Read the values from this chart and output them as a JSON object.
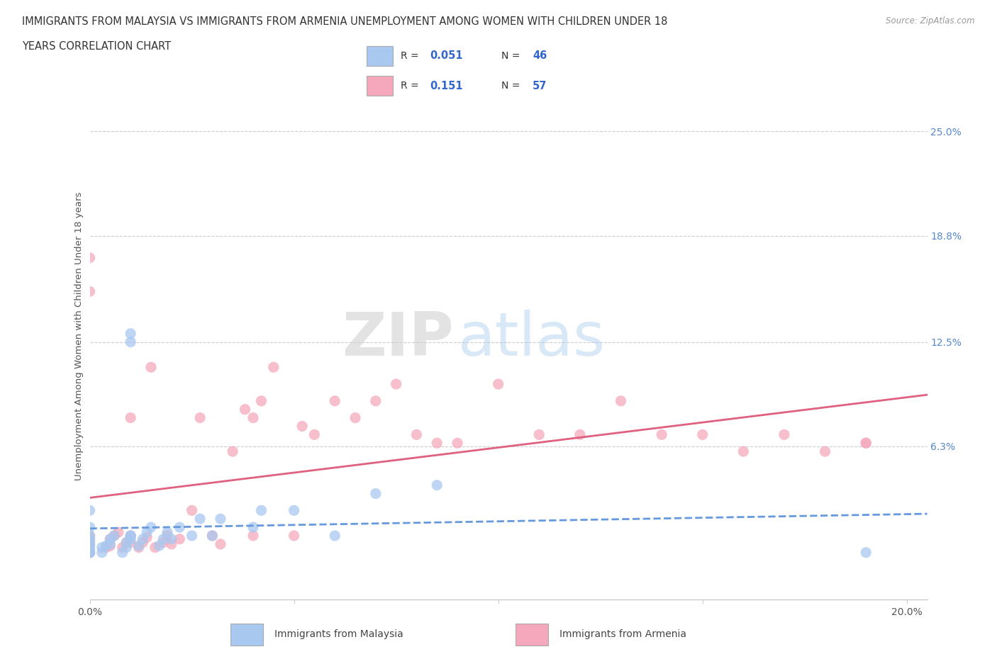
{
  "title_line1": "IMMIGRANTS FROM MALAYSIA VS IMMIGRANTS FROM ARMENIA UNEMPLOYMENT AMONG WOMEN WITH CHILDREN UNDER 18",
  "title_line2": "YEARS CORRELATION CHART",
  "source": "Source: ZipAtlas.com",
  "ylabel": "Unemployment Among Women with Children Under 18 years",
  "xlim": [
    0.0,
    0.205
  ],
  "ylim": [
    -0.028,
    0.285
  ],
  "ytick_right_labels": [
    "25.0%",
    "18.8%",
    "12.5%",
    "6.3%"
  ],
  "ytick_right_values": [
    0.25,
    0.188,
    0.125,
    0.063
  ],
  "R_malaysia": 0.051,
  "N_malaysia": 46,
  "R_armenia": 0.151,
  "N_armenia": 57,
  "color_malaysia": "#a8c8f0",
  "color_armenia": "#f5a8bc",
  "trendline_malaysia_color": "#6699dd",
  "trendline_armenia_color": "#e06080",
  "watermark_zip": "ZIP",
  "watermark_atlas": "atlas",
  "legend_label_malaysia": "Immigrants from Malaysia",
  "legend_label_armenia": "Immigrants from Armenia",
  "malaysia_x": [
    0.0,
    0.0,
    0.0,
    0.0,
    0.0,
    0.0,
    0.0,
    0.0,
    0.0,
    0.0,
    0.0,
    0.0,
    0.003,
    0.003,
    0.004,
    0.005,
    0.005,
    0.006,
    0.008,
    0.009,
    0.009,
    0.01,
    0.01,
    0.01,
    0.01,
    0.01,
    0.012,
    0.013,
    0.014,
    0.015,
    0.017,
    0.018,
    0.019,
    0.02,
    0.022,
    0.025,
    0.027,
    0.03,
    0.032,
    0.04,
    0.042,
    0.05,
    0.06,
    0.07,
    0.085,
    0.19
  ],
  "malaysia_y": [
    0.0,
    0.0,
    0.0,
    0.0,
    0.002,
    0.004,
    0.005,
    0.007,
    0.008,
    0.01,
    0.015,
    0.025,
    0.0,
    0.003,
    0.004,
    0.005,
    0.008,
    0.01,
    0.0,
    0.003,
    0.006,
    0.008,
    0.01,
    0.01,
    0.13,
    0.125,
    0.004,
    0.008,
    0.012,
    0.015,
    0.004,
    0.008,
    0.012,
    0.008,
    0.015,
    0.01,
    0.02,
    0.01,
    0.02,
    0.015,
    0.025,
    0.025,
    0.01,
    0.035,
    0.04,
    0.0
  ],
  "armenia_x": [
    0.0,
    0.0,
    0.0,
    0.0,
    0.0,
    0.0,
    0.0,
    0.004,
    0.005,
    0.005,
    0.006,
    0.007,
    0.008,
    0.009,
    0.01,
    0.01,
    0.01,
    0.012,
    0.013,
    0.014,
    0.015,
    0.016,
    0.018,
    0.019,
    0.02,
    0.022,
    0.025,
    0.027,
    0.03,
    0.032,
    0.035,
    0.038,
    0.04,
    0.04,
    0.042,
    0.045,
    0.05,
    0.052,
    0.055,
    0.06,
    0.065,
    0.07,
    0.075,
    0.08,
    0.085,
    0.09,
    0.1,
    0.11,
    0.12,
    0.13,
    0.14,
    0.15,
    0.16,
    0.17,
    0.18,
    0.19,
    0.19
  ],
  "armenia_y": [
    0.0,
    0.003,
    0.005,
    0.008,
    0.01,
    0.155,
    0.175,
    0.003,
    0.004,
    0.008,
    0.01,
    0.012,
    0.003,
    0.006,
    0.006,
    0.01,
    0.08,
    0.003,
    0.006,
    0.009,
    0.11,
    0.003,
    0.006,
    0.01,
    0.005,
    0.008,
    0.025,
    0.08,
    0.01,
    0.005,
    0.06,
    0.085,
    0.01,
    0.08,
    0.09,
    0.11,
    0.01,
    0.075,
    0.07,
    0.09,
    0.08,
    0.09,
    0.1,
    0.07,
    0.065,
    0.065,
    0.1,
    0.07,
    0.07,
    0.09,
    0.07,
    0.07,
    0.06,
    0.07,
    0.06,
    0.065,
    0.065
  ]
}
